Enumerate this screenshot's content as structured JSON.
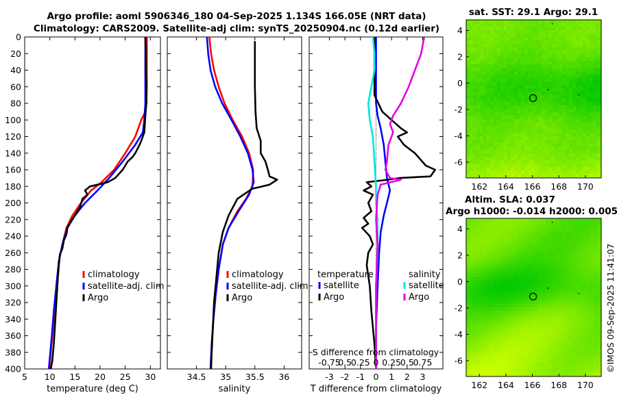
{
  "titles": {
    "line1": "Argo profile: aoml 5906346_180 04-Sep-2025 1.134S 166.05E (NRT data)",
    "line2": "Climatology: CARS2009. Satellite-adj clim: synTS_20250904.nc (0.12d earlier)",
    "sst": "sat. SST: 29.1 Argo: 29.1",
    "sla1": "Altim. SLA: 0.037",
    "sla2": "Argo h1000: -0.014 h2000: 0.0051",
    "timestamp": "©IMOS 09-Sep-2025 11:41:07"
  },
  "colors": {
    "climatology": "#ff0000",
    "satellite": "#0000ff",
    "argo": "#000000",
    "sal_sat": "#00e5e5",
    "sal_argo": "#e500e5",
    "map_a": "#00d000",
    "map_b": "#ccff00"
  },
  "chart_data": [
    {
      "type": "line",
      "name": "temperature",
      "xlabel": "temperature (deg C)",
      "xlim": [
        5,
        32
      ],
      "ylim": [
        400,
        0
      ],
      "xticks": [
        5,
        10,
        15,
        20,
        25,
        30
      ],
      "yticks": [
        0,
        20,
        40,
        60,
        80,
        100,
        120,
        140,
        160,
        180,
        200,
        220,
        240,
        260,
        280,
        300,
        320,
        340,
        360,
        380,
        400
      ],
      "legend": [
        "climatology",
        "satellite-adj. clim",
        "Argo"
      ],
      "series": [
        {
          "name": "climatology",
          "color": "#ff0000",
          "points": [
            [
              29.3,
              0
            ],
            [
              29.3,
              20
            ],
            [
              29.3,
              40
            ],
            [
              29.3,
              60
            ],
            [
              29.2,
              80
            ],
            [
              29.0,
              90
            ],
            [
              28.2,
              100
            ],
            [
              27.0,
              120
            ],
            [
              25.0,
              140
            ],
            [
              22.8,
              160
            ],
            [
              20.3,
              175
            ],
            [
              18.2,
              185
            ],
            [
              16.2,
              200
            ],
            [
              14.5,
              215
            ],
            [
              13.3,
              230
            ],
            [
              12.5,
              250
            ],
            [
              11.8,
              270
            ],
            [
              11.3,
              300
            ],
            [
              10.9,
              330
            ],
            [
              10.5,
              360
            ],
            [
              10.2,
              380
            ],
            [
              9.9,
              400
            ]
          ]
        },
        {
          "name": "satellite-adj. clim",
          "color": "#0000ff",
          "points": [
            [
              29.0,
              0
            ],
            [
              29.0,
              20
            ],
            [
              29.0,
              40
            ],
            [
              29.0,
              60
            ],
            [
              29.0,
              80
            ],
            [
              28.8,
              100
            ],
            [
              28.5,
              115
            ],
            [
              27.0,
              130
            ],
            [
              24.5,
              150
            ],
            [
              21.8,
              170
            ],
            [
              19.5,
              185
            ],
            [
              17.0,
              200
            ],
            [
              15.0,
              215
            ],
            [
              13.5,
              230
            ],
            [
              12.5,
              250
            ],
            [
              11.8,
              270
            ],
            [
              11.3,
              300
            ],
            [
              10.8,
              330
            ],
            [
              10.4,
              360
            ],
            [
              10.1,
              380
            ],
            [
              9.8,
              400
            ]
          ]
        },
        {
          "name": "Argo",
          "color": "#000000",
          "points": [
            [
              29.0,
              0
            ],
            [
              29.1,
              20
            ],
            [
              29.1,
              40
            ],
            [
              29.2,
              60
            ],
            [
              29.2,
              80
            ],
            [
              29.0,
              95
            ],
            [
              28.8,
              115
            ],
            [
              28.0,
              128
            ],
            [
              27.0,
              140
            ],
            [
              26.4,
              145
            ],
            [
              25.5,
              150
            ],
            [
              24.5,
              160
            ],
            [
              23.0,
              170
            ],
            [
              21.5,
              175
            ],
            [
              19.5,
              178
            ],
            [
              18.0,
              180
            ],
            [
              17.0,
              185
            ],
            [
              17.5,
              190
            ],
            [
              16.5,
              195
            ],
            [
              16.0,
              205
            ],
            [
              15.0,
              215
            ],
            [
              14.2,
              222
            ],
            [
              13.5,
              230
            ],
            [
              13.3,
              238
            ],
            [
              12.8,
              245
            ],
            [
              12.5,
              255
            ],
            [
              12.0,
              262
            ],
            [
              11.8,
              275
            ],
            [
              11.6,
              290
            ],
            [
              11.4,
              310
            ],
            [
              11.2,
              330
            ],
            [
              11.0,
              350
            ],
            [
              10.8,
              370
            ],
            [
              10.5,
              390
            ],
            [
              10.2,
              400
            ]
          ]
        }
      ]
    },
    {
      "type": "line",
      "name": "salinity",
      "xlabel": "salinity",
      "xlim": [
        34.0,
        36.3
      ],
      "ylim": [
        400,
        0
      ],
      "xticks": [
        34.5,
        35,
        35.5,
        36
      ],
      "xticklabels": [
        "34.5",
        "35",
        "35.5",
        "36"
      ],
      "legend": [
        "climatology",
        "satellite-adj. clim",
        "Argo"
      ],
      "series": [
        {
          "name": "climatology",
          "color": "#ff0000",
          "points": [
            [
              34.72,
              0
            ],
            [
              34.75,
              20
            ],
            [
              34.8,
              40
            ],
            [
              34.88,
              60
            ],
            [
              34.98,
              80
            ],
            [
              35.12,
              100
            ],
            [
              35.28,
              120
            ],
            [
              35.4,
              140
            ],
            [
              35.47,
              160
            ],
            [
              35.46,
              180
            ],
            [
              35.35,
              195
            ],
            [
              35.2,
              210
            ],
            [
              35.05,
              230
            ],
            [
              34.95,
              250
            ],
            [
              34.88,
              280
            ],
            [
              34.83,
              310
            ],
            [
              34.79,
              340
            ],
            [
              34.76,
              370
            ],
            [
              34.74,
              400
            ]
          ]
        },
        {
          "name": "satellite-adj. clim",
          "color": "#0000ff",
          "points": [
            [
              34.68,
              0
            ],
            [
              34.7,
              20
            ],
            [
              34.74,
              40
            ],
            [
              34.82,
              60
            ],
            [
              34.94,
              80
            ],
            [
              35.1,
              100
            ],
            [
              35.25,
              120
            ],
            [
              35.38,
              140
            ],
            [
              35.46,
              160
            ],
            [
              35.48,
              175
            ],
            [
              35.4,
              190
            ],
            [
              35.22,
              210
            ],
            [
              35.05,
              230
            ],
            [
              34.95,
              250
            ],
            [
              34.88,
              280
            ],
            [
              34.83,
              310
            ],
            [
              34.79,
              340
            ],
            [
              34.76,
              370
            ],
            [
              34.74,
              400
            ]
          ]
        },
        {
          "name": "Argo",
          "color": "#000000",
          "points": [
            [
              35.5,
              5
            ],
            [
              35.5,
              30
            ],
            [
              35.5,
              60
            ],
            [
              35.51,
              90
            ],
            [
              35.53,
              110
            ],
            [
              35.6,
              125
            ],
            [
              35.6,
              140
            ],
            [
              35.68,
              150
            ],
            [
              35.73,
              162
            ],
            [
              35.75,
              168
            ],
            [
              35.88,
              172
            ],
            [
              35.75,
              178
            ],
            [
              35.45,
              183
            ],
            [
              35.2,
              195
            ],
            [
              35.05,
              215
            ],
            [
              34.95,
              235
            ],
            [
              34.88,
              260
            ],
            [
              34.84,
              290
            ],
            [
              34.8,
              320
            ],
            [
              34.78,
              350
            ],
            [
              34.76,
              380
            ],
            [
              34.75,
              400
            ]
          ]
        }
      ]
    },
    {
      "type": "line",
      "name": "difference",
      "xlabel": "T difference from climatology",
      "xlabel_top": "S difference from climatology",
      "xlim": [
        -4.3,
        4.3
      ],
      "ylim": [
        400,
        0
      ],
      "xticks": [
        -3,
        -2,
        -1,
        0,
        1,
        2,
        3
      ],
      "top_ticklabels": [
        "-0.75",
        "0.5",
        "0.25",
        "0",
        "0.25",
        "0.5",
        "0.75"
      ],
      "legend_left_title": "temperature",
      "legend_right_title": "salinity",
      "legend": [
        "satellite",
        "Argo",
        "satellite",
        "Argo"
      ],
      "series": [
        {
          "name": "satellite",
          "color": "#0000ff",
          "points": [
            [
              0.0,
              0
            ],
            [
              0.0,
              40
            ],
            [
              0.0,
              80
            ],
            [
              0.1,
              95
            ],
            [
              0.3,
              110
            ],
            [
              0.5,
              130
            ],
            [
              0.6,
              150
            ],
            [
              0.7,
              170
            ],
            [
              0.9,
              185
            ],
            [
              0.7,
              200
            ],
            [
              0.5,
              215
            ],
            [
              0.3,
              235
            ],
            [
              0.2,
              260
            ],
            [
              0.1,
              300
            ],
            [
              0.0,
              350
            ],
            [
              0.0,
              400
            ]
          ]
        },
        {
          "name": "Argo",
          "color": "#000000",
          "points": [
            [
              -0.1,
              0
            ],
            [
              -0.1,
              40
            ],
            [
              -0.1,
              70
            ],
            [
              0.4,
              90
            ],
            [
              1.0,
              100
            ],
            [
              1.6,
              110
            ],
            [
              2.0,
              115
            ],
            [
              1.4,
              120
            ],
            [
              1.8,
              130
            ],
            [
              2.5,
              140
            ],
            [
              3.2,
              155
            ],
            [
              3.8,
              160
            ],
            [
              3.5,
              168
            ],
            [
              1.5,
              170
            ],
            [
              0.8,
              172
            ],
            [
              -0.6,
              175
            ],
            [
              -0.3,
              180
            ],
            [
              -0.8,
              185
            ],
            [
              -0.2,
              190
            ],
            [
              -0.5,
              200
            ],
            [
              -0.3,
              210
            ],
            [
              -0.8,
              218
            ],
            [
              -0.5,
              225
            ],
            [
              -0.9,
              230
            ],
            [
              -0.4,
              240
            ],
            [
              -0.2,
              250
            ],
            [
              -0.5,
              260
            ],
            [
              -0.6,
              275
            ],
            [
              -0.4,
              300
            ],
            [
              -0.3,
              330
            ],
            [
              -0.1,
              370
            ],
            [
              0.0,
              400
            ]
          ]
        },
        {
          "name": "salinity satellite",
          "color": "#00e5e5",
          "points": [
            [
              -0.2,
              0
            ],
            [
              -0.1,
              20
            ],
            [
              -0.1,
              40
            ],
            [
              -0.3,
              60
            ],
            [
              -0.5,
              80
            ],
            [
              -0.4,
              100
            ],
            [
              -0.2,
              120
            ],
            [
              -0.1,
              150
            ],
            [
              0.0,
              180
            ],
            [
              0.0,
              200
            ],
            [
              0.1,
              220
            ],
            [
              0.1,
              260
            ],
            [
              0.0,
              300
            ],
            [
              0.0,
              350
            ],
            [
              0.0,
              400
            ]
          ]
        },
        {
          "name": "salinity Argo",
          "color": "#e500e5",
          "points": [
            [
              3.1,
              0
            ],
            [
              2.9,
              20
            ],
            [
              2.5,
              40
            ],
            [
              2.1,
              60
            ],
            [
              1.6,
              80
            ],
            [
              1.1,
              95
            ],
            [
              0.9,
              105
            ],
            [
              1.1,
              115
            ],
            [
              0.8,
              130
            ],
            [
              0.7,
              150
            ],
            [
              0.6,
              160
            ],
            [
              0.9,
              170
            ],
            [
              1.6,
              172
            ],
            [
              0.3,
              178
            ],
            [
              0.1,
              190
            ],
            [
              0.0,
              220
            ],
            [
              0.1,
              250
            ],
            [
              0.0,
              300
            ],
            [
              0.0,
              350
            ],
            [
              0.0,
              400
            ]
          ]
        }
      ]
    },
    {
      "type": "heatmap",
      "name": "sst-map",
      "title": "sat. SST: 29.1 Argo: 29.1",
      "xlim": [
        161,
        171.2
      ],
      "ylim": [
        -7.2,
        4.8
      ],
      "xticks": [
        162,
        164,
        166,
        168,
        170
      ],
      "yticks": [
        4,
        2,
        0,
        -2,
        -4,
        -6
      ],
      "marker": [
        166.05,
        -1.134
      ]
    },
    {
      "type": "heatmap",
      "name": "sla-map",
      "title": "Altim. SLA: 0.037",
      "xlim": [
        161,
        171.2
      ],
      "ylim": [
        -7.2,
        4.8
      ],
      "xticks": [
        162,
        164,
        166,
        168,
        170
      ],
      "yticks": [
        4,
        2,
        0,
        -2,
        -4,
        -6
      ],
      "marker": [
        166.05,
        -1.134
      ]
    }
  ]
}
